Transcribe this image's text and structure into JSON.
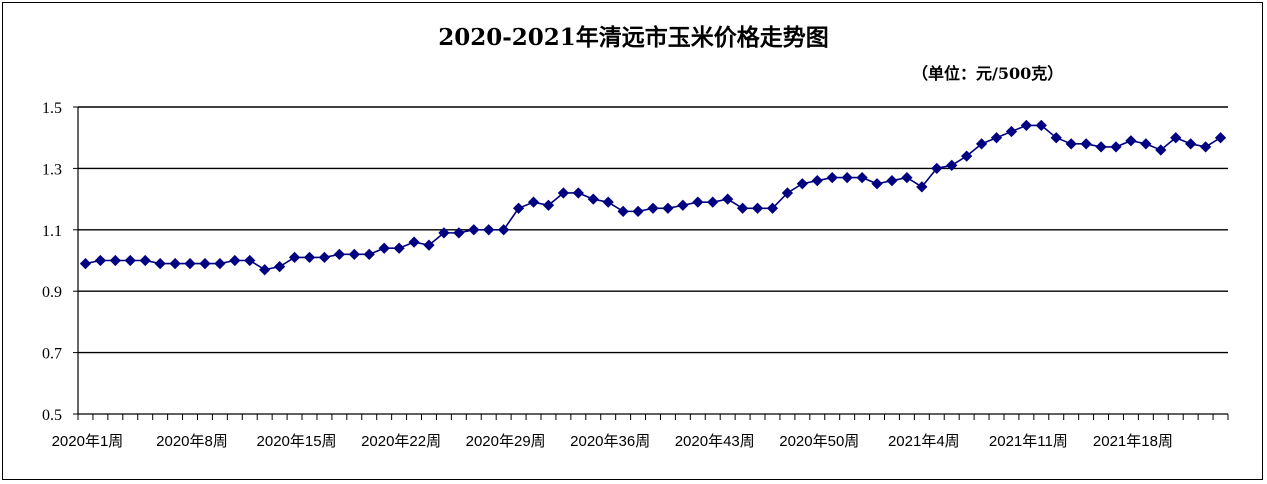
{
  "chart_data": {
    "type": "line",
    "title": "2020-2021年清远市玉米价格走势图",
    "unit_label": "（单位：元/500克）",
    "ylim": [
      0.5,
      1.5
    ],
    "y_ticks": [
      "0.5",
      "0.7",
      "0.9",
      "1.1",
      "1.3",
      "1.5"
    ],
    "x_tick_labels": [
      "2020年1周",
      "2020年8周",
      "2020年15周",
      "2020年22周",
      "2020年29周",
      "2020年36周",
      "2020年43周",
      "2020年50周",
      "2021年4周",
      "2021年11周",
      "2021年18周"
    ],
    "x_label_step": 7,
    "grid": "horizontal",
    "series_color": "#000080",
    "series": [
      {
        "values": [
          0.99,
          1.0,
          1.0,
          1.0,
          1.0,
          0.99,
          0.99,
          0.99,
          0.99,
          0.99,
          1.0,
          1.0,
          0.97,
          0.98,
          1.01,
          1.01,
          1.01,
          1.02,
          1.02,
          1.02,
          1.04,
          1.04,
          1.06,
          1.05,
          1.09,
          1.09,
          1.1,
          1.1,
          1.1,
          1.17,
          1.19,
          1.18,
          1.22,
          1.22,
          1.2,
          1.19,
          1.16,
          1.16,
          1.17,
          1.17,
          1.18,
          1.19,
          1.19,
          1.2,
          1.17,
          1.17,
          1.17,
          1.22,
          1.25,
          1.26,
          1.27,
          1.27,
          1.27,
          1.25,
          1.26,
          1.27,
          1.24,
          1.3,
          1.31,
          1.34,
          1.38,
          1.4,
          1.42,
          1.44,
          1.44,
          1.4,
          1.38,
          1.38,
          1.37,
          1.37,
          1.39,
          1.38,
          1.36,
          1.4,
          1.38,
          1.37,
          1.4
        ]
      }
    ]
  }
}
